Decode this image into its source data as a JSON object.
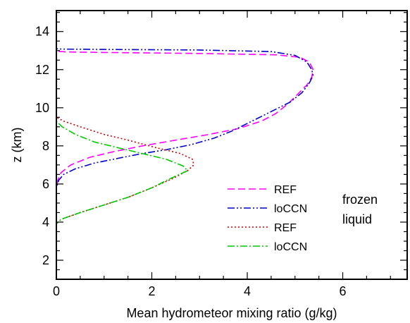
{
  "chart_data": {
    "type": "line",
    "xlabel": "Mean hydrometeor mixing ratio (g/kg)",
    "ylabel": "z (km)",
    "xlim": [
      0,
      7.35
    ],
    "ylim": [
      1.0,
      15.1
    ],
    "xticks": [
      0,
      2,
      4,
      6
    ],
    "yticks": [
      2,
      4,
      6,
      8,
      10,
      12,
      14
    ],
    "grid": false,
    "legend_position": "right",
    "legend_groups": [
      {
        "label": "frozen",
        "series": [
          "REF",
          "loCCN"
        ]
      },
      {
        "label": "liquid",
        "series": [
          "REF",
          "loCCN"
        ]
      }
    ],
    "series": [
      {
        "name": "REF",
        "group": "frozen",
        "color": "#ff00ff",
        "dash": "dashed",
        "points": [
          [
            0,
            1.0
          ],
          [
            0,
            5.8
          ],
          [
            0.03,
            6.2
          ],
          [
            0.1,
            6.6
          ],
          [
            0.3,
            7.0
          ],
          [
            0.7,
            7.4
          ],
          [
            1.2,
            7.7
          ],
          [
            1.8,
            8.0
          ],
          [
            2.5,
            8.3
          ],
          [
            3.2,
            8.6
          ],
          [
            3.8,
            8.9
          ],
          [
            4.3,
            9.3
          ],
          [
            4.6,
            9.7
          ],
          [
            4.85,
            10.2
          ],
          [
            5.05,
            10.7
          ],
          [
            5.25,
            11.2
          ],
          [
            5.35,
            11.6
          ],
          [
            5.38,
            12.0
          ],
          [
            5.3,
            12.4
          ],
          [
            5.1,
            12.65
          ],
          [
            4.6,
            12.78
          ],
          [
            3.0,
            12.85
          ],
          [
            1.0,
            12.9
          ],
          [
            0.2,
            12.93
          ],
          [
            0,
            12.97
          ],
          [
            0,
            15.1
          ]
        ]
      },
      {
        "name": "loCCN",
        "group": "frozen",
        "color": "#0000cc",
        "dash": "dash-dot-dot",
        "points": [
          [
            0,
            1.0
          ],
          [
            0,
            5.8
          ],
          [
            0.05,
            6.2
          ],
          [
            0.15,
            6.5
          ],
          [
            0.4,
            6.8
          ],
          [
            0.8,
            7.1
          ],
          [
            1.3,
            7.35
          ],
          [
            1.8,
            7.6
          ],
          [
            2.3,
            7.8
          ],
          [
            2.8,
            8.05
          ],
          [
            3.3,
            8.4
          ],
          [
            3.7,
            8.8
          ],
          [
            4.1,
            9.3
          ],
          [
            4.5,
            9.8
          ],
          [
            4.9,
            10.3
          ],
          [
            5.15,
            10.8
          ],
          [
            5.3,
            11.3
          ],
          [
            5.38,
            11.7
          ],
          [
            5.35,
            12.0
          ],
          [
            5.25,
            12.4
          ],
          [
            5.0,
            12.75
          ],
          [
            4.5,
            12.95
          ],
          [
            3.0,
            13.03
          ],
          [
            1.0,
            13.06
          ],
          [
            0.1,
            13.08
          ],
          [
            0,
            13.1
          ],
          [
            0,
            15.1
          ]
        ]
      },
      {
        "name": "REF",
        "group": "liquid",
        "color": "#cc0000",
        "dash": "dotted",
        "points": [
          [
            0,
            1.0
          ],
          [
            0,
            3.9
          ],
          [
            0.1,
            4.15
          ],
          [
            0.5,
            4.5
          ],
          [
            1.0,
            4.9
          ],
          [
            1.5,
            5.3
          ],
          [
            2.0,
            5.8
          ],
          [
            2.45,
            6.3
          ],
          [
            2.75,
            6.7
          ],
          [
            2.88,
            7.0
          ],
          [
            2.85,
            7.3
          ],
          [
            2.6,
            7.6
          ],
          [
            2.1,
            7.9
          ],
          [
            1.5,
            8.3
          ],
          [
            1.0,
            8.6
          ],
          [
            0.5,
            9.0
          ],
          [
            0.15,
            9.3
          ],
          [
            0,
            9.5
          ],
          [
            0,
            15.1
          ]
        ]
      },
      {
        "name": "loCCN",
        "group": "liquid",
        "color": "#00cc00",
        "dash": "dash-dot",
        "points": [
          [
            0,
            1.0
          ],
          [
            0,
            3.9
          ],
          [
            0.1,
            4.15
          ],
          [
            0.5,
            4.5
          ],
          [
            1.0,
            4.9
          ],
          [
            1.5,
            5.3
          ],
          [
            2.0,
            5.8
          ],
          [
            2.4,
            6.3
          ],
          [
            2.75,
            6.7
          ],
          [
            2.65,
            6.95
          ],
          [
            2.3,
            7.3
          ],
          [
            1.8,
            7.6
          ],
          [
            1.3,
            7.9
          ],
          [
            0.8,
            8.2
          ],
          [
            0.4,
            8.6
          ],
          [
            0.12,
            9.0
          ],
          [
            0,
            9.3
          ],
          [
            0,
            15.1
          ]
        ]
      }
    ]
  }
}
